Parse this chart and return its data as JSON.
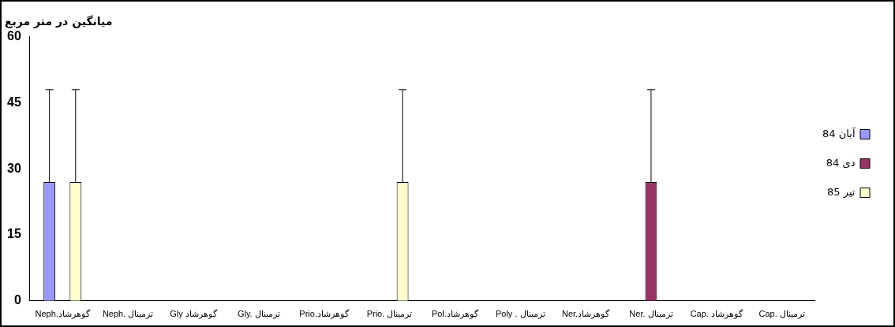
{
  "chart_data": {
    "type": "bar",
    "ylabel": "میانگین در متر مربع",
    "categories": [
      "Neph.گوهرشاد",
      "Neph. ترمینال",
      "Gly گوهرشاد",
      "Gly. ترمینال",
      "Prio.گوهرشاد",
      "Prio. ترمینال",
      "Pol.گوهرشاد",
      "Poly . ترمینال",
      "Ner.گوهرشاد",
      "Ner. ترمینال",
      "Cap. گوهرشاد",
      "Cap. ترمینال"
    ],
    "series": [
      {
        "name": "آبان 84",
        "color": "#9999ff",
        "values": [
          27,
          0,
          0,
          0,
          0,
          0,
          0,
          0,
          0,
          0,
          0,
          0
        ],
        "errors": [
          [
            27,
            48
          ],
          null,
          null,
          null,
          null,
          null,
          null,
          null,
          null,
          null,
          null,
          null
        ]
      },
      {
        "name": "دی 84",
        "color": "#993366",
        "values": [
          0,
          0,
          0,
          0,
          0,
          0,
          0,
          0,
          0,
          27,
          0,
          0
        ],
        "errors": [
          null,
          null,
          null,
          null,
          null,
          null,
          null,
          null,
          null,
          [
            27,
            48
          ],
          null,
          null
        ]
      },
      {
        "name": "تیر 85",
        "color": "#ffffcc",
        "values": [
          27,
          0,
          0,
          0,
          0,
          27,
          0,
          0,
          0,
          0,
          0,
          0
        ],
        "errors": [
          [
            27,
            48
          ],
          null,
          null,
          null,
          null,
          [
            27,
            48
          ],
          null,
          null,
          null,
          null,
          null,
          null
        ]
      }
    ],
    "ylim": [
      0,
      60
    ],
    "yticks": [
      0,
      15,
      30,
      45,
      60
    ],
    "grid": false,
    "legend": "right"
  }
}
